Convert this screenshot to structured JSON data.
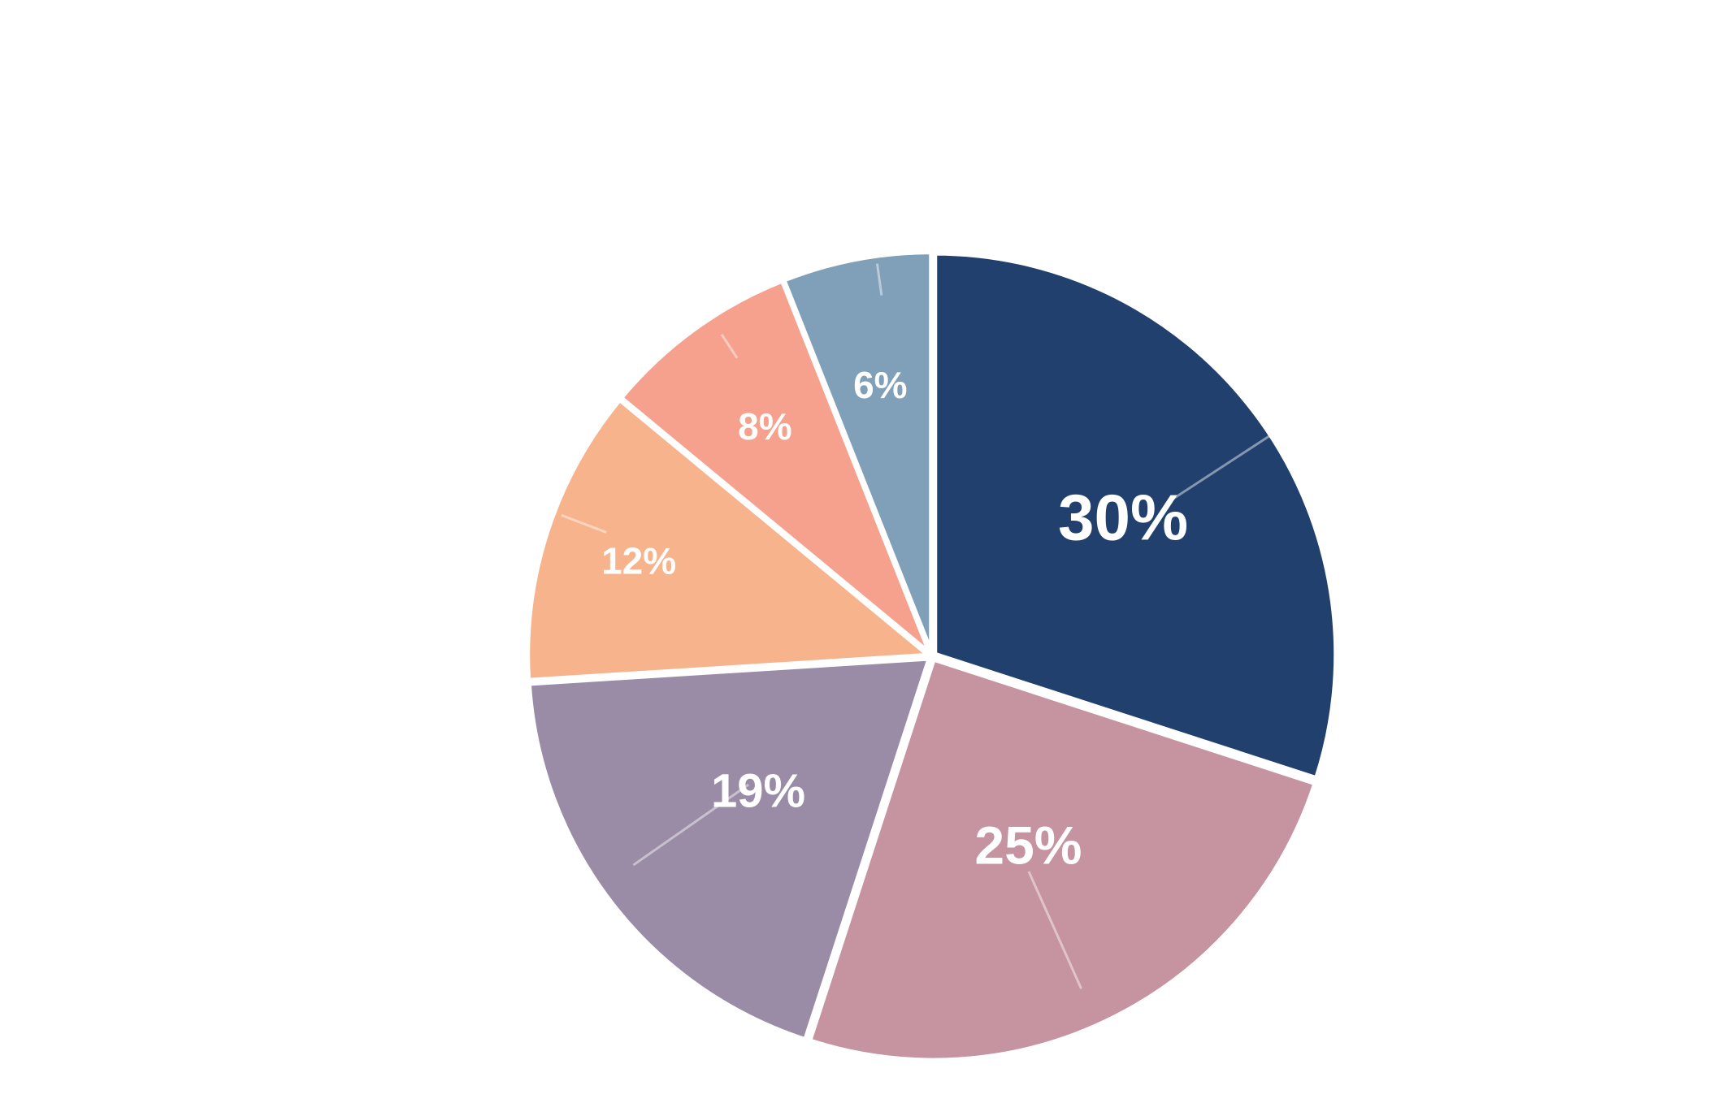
{
  "chart_data": {
    "type": "pie",
    "title": "",
    "slices": [
      {
        "value": 30,
        "label": "30%",
        "color": "#21406e"
      },
      {
        "value": 25,
        "label": "25%",
        "color": "#c594a0"
      },
      {
        "value": 19,
        "label": "19%",
        "color": "#9a8ca6"
      },
      {
        "value": 12,
        "label": "12%",
        "color": "#f7b38c"
      },
      {
        "value": 8,
        "label": "8%",
        "color": "#f6a18e"
      },
      {
        "value": 6,
        "label": "6%",
        "color": "#809fb8"
      }
    ],
    "start": "12 o'clock",
    "direction": "clockwise",
    "legend": "none",
    "background": "#ffffff"
  }
}
